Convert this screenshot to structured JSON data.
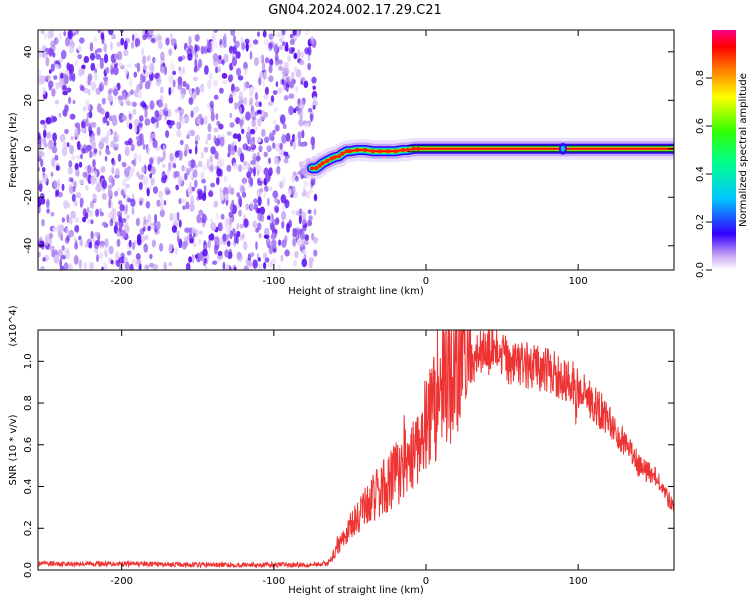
{
  "figure": {
    "title": "GN04.2024.002.17.29.C21"
  },
  "chart_data": [
    {
      "type": "heatmap",
      "xlabel": "Height of straight line (km)",
      "ylabel": "Frequency (Hz)",
      "xlim": [
        -255,
        163
      ],
      "ylim": [
        -50,
        49
      ],
      "x_ticks": [
        -200,
        -100,
        0,
        100
      ],
      "y_ticks": [
        -40,
        -20,
        0,
        20,
        40
      ],
      "noise_region_x": [
        -255,
        -75
      ],
      "signal_track": {
        "x": [
          -75,
          -72,
          -70,
          -68,
          -65,
          -62,
          -60,
          -57,
          -55,
          -52,
          -50,
          -45,
          -40,
          -35,
          -30,
          -25,
          -20,
          -15,
          -12,
          -8,
          -5,
          0,
          20,
          60,
          90,
          100,
          163
        ],
        "y": [
          -8,
          -8,
          -7,
          -6,
          -5,
          -4,
          -3.5,
          -3,
          -2,
          -1,
          -1,
          -0.5,
          -0.5,
          -1,
          -1,
          -1,
          -1,
          -0.5,
          -0.5,
          0,
          0,
          0,
          0,
          0,
          0,
          0,
          0
        ]
      },
      "colorbar": {
        "label": "Normalized spectral amplitude",
        "range": [
          0,
          1
        ],
        "ticks": [
          0.0,
          0.2,
          0.4,
          0.6,
          0.8
        ]
      }
    },
    {
      "type": "line",
      "xlabel": "Height of straight line (km)",
      "ylabel": "SNR (10 * v/v)",
      "y_multiplier": "(x10^4)",
      "xlim": [
        -255,
        163
      ],
      "ylim": [
        0,
        1.15
      ],
      "x_ticks": [
        -200,
        -100,
        0,
        100
      ],
      "y_ticks": [
        0.0,
        0.2,
        0.4,
        0.6,
        0.8,
        1.0
      ],
      "series": [
        {
          "color": "#ee3333",
          "x": [
            -255,
            -200,
            -150,
            -100,
            -80,
            -65,
            -60,
            -55,
            -50,
            -40,
            -30,
            -20,
            -10,
            0,
            10,
            20,
            30,
            40,
            50,
            60,
            70,
            80,
            90,
            100,
            110,
            120,
            130,
            140,
            150,
            163
          ],
          "values": [
            0.03,
            0.03,
            0.025,
            0.025,
            0.025,
            0.03,
            0.08,
            0.15,
            0.2,
            0.3,
            0.38,
            0.45,
            0.55,
            0.7,
            0.85,
            0.95,
            1.02,
            1.05,
            1.02,
            0.99,
            0.97,
            0.95,
            0.92,
            0.88,
            0.8,
            0.72,
            0.62,
            0.5,
            0.45,
            0.3
          ]
        }
      ]
    }
  ]
}
